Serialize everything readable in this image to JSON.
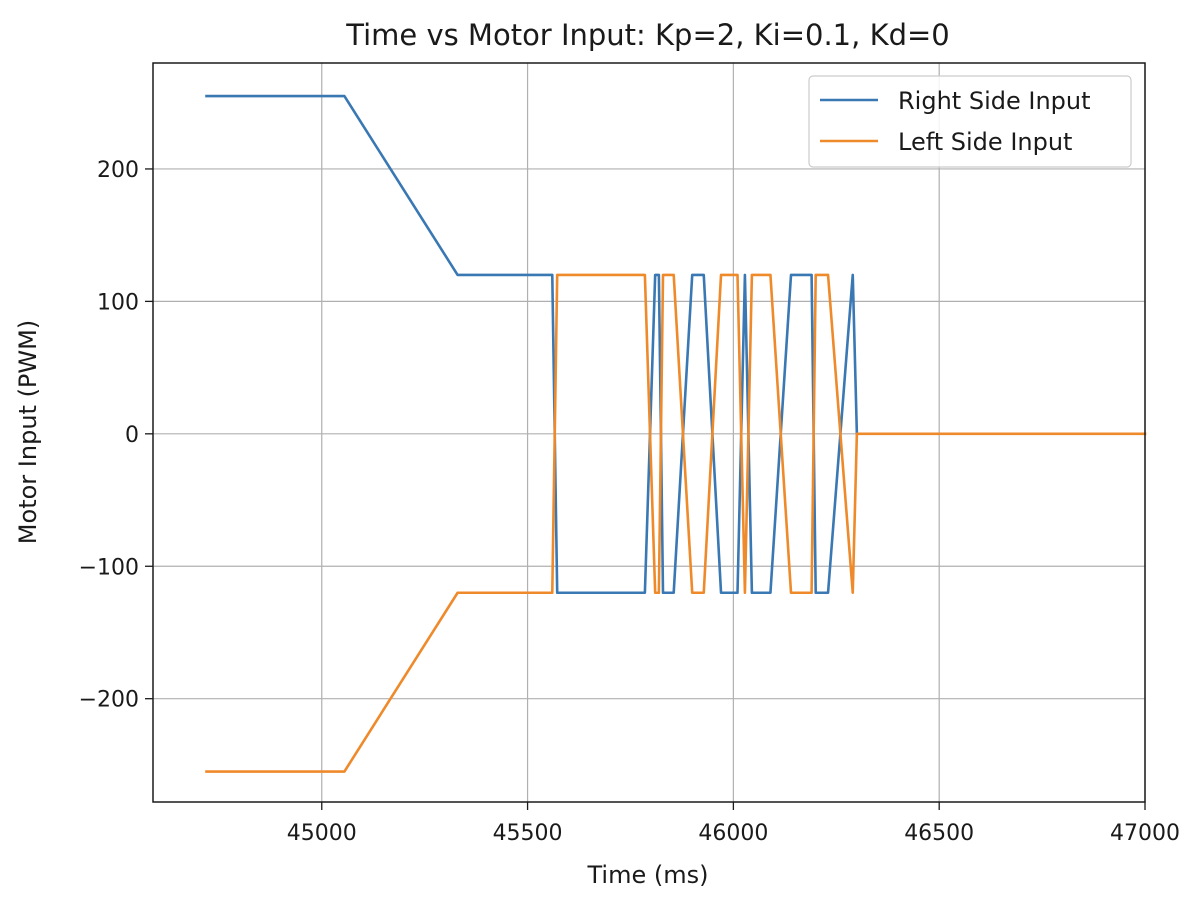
{
  "chart_data": {
    "type": "line",
    "title": "Time vs Motor Input: Kp=2, Ki=0.1, Kd=0",
    "xlabel": "Time (ms)",
    "ylabel": "Motor Input (PWM)",
    "xlim": [
      44590,
      47000
    ],
    "ylim": [
      -278,
      280
    ],
    "xticks": [
      45000,
      45500,
      46000,
      46500,
      47000
    ],
    "xtick_labels": [
      "45000",
      "45500",
      "46000",
      "46500",
      "47000"
    ],
    "yticks": [
      200,
      100,
      0,
      -100,
      -200
    ],
    "ytick_labels": [
      "200",
      "100",
      "0",
      "−100",
      "−200"
    ],
    "grid": true,
    "legend": {
      "position": "top-right"
    },
    "series": [
      {
        "name": "Right Side Input",
        "color": "#3a78b4",
        "x": [
          44720,
          45055,
          45330,
          45560,
          45572,
          45593,
          45785,
          45810,
          45819,
          45829,
          45855,
          45900,
          45928,
          45970,
          46010,
          46028,
          46045,
          46090,
          46140,
          46190,
          46200,
          46230,
          46290,
          46300
        ],
        "y": [
          255,
          255,
          120,
          120,
          -120,
          -120,
          -120,
          120,
          120,
          -120,
          -120,
          120,
          120,
          -120,
          -120,
          120,
          -120,
          -120,
          120,
          120,
          -120,
          -120,
          120,
          0
        ]
      },
      {
        "name": "Left Side Input",
        "color": "#ef8a2b",
        "x": [
          44720,
          45055,
          45330,
          45560,
          45572,
          45593,
          45785,
          45810,
          45819,
          45829,
          45855,
          45900,
          45928,
          45970,
          46010,
          46028,
          46045,
          46090,
          46140,
          46190,
          46200,
          46230,
          46290,
          46300,
          47000
        ],
        "y": [
          -255,
          -255,
          -120,
          -120,
          120,
          120,
          120,
          -120,
          -120,
          120,
          120,
          -120,
          -120,
          120,
          120,
          -120,
          120,
          120,
          -120,
          -120,
          120,
          120,
          -120,
          0,
          0
        ]
      }
    ]
  }
}
